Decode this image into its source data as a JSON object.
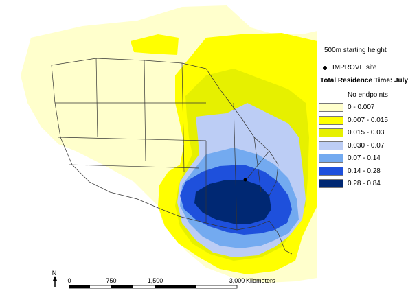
{
  "legend": {
    "height_label": "500m starting height",
    "site_label": "IMPROVE site",
    "title": "Total Residence Time: July",
    "items": [
      {
        "label": "No endpoints",
        "color": "#ffffff"
      },
      {
        "label": "0 - 0.007",
        "color": "#ffffcc"
      },
      {
        "label": "0.007 - 0.015",
        "color": "#ffff00"
      },
      {
        "label": "0.015 - 0.03",
        "color": "#e6f000"
      },
      {
        "label": "0.030 - 0.07",
        "color": "#bccdf5"
      },
      {
        "label": "0.07 - 0.14",
        "color": "#73aaf0"
      },
      {
        "label": "0.14 - 0.28",
        "color": "#1e50dc"
      },
      {
        "label": "0.28 - 0.84",
        "color": "#002873"
      }
    ]
  },
  "scale_bar": {
    "ticks": [
      "0",
      "750",
      "1,500",
      "3,000"
    ],
    "unit": "Kilometers",
    "north": "N"
  }
}
